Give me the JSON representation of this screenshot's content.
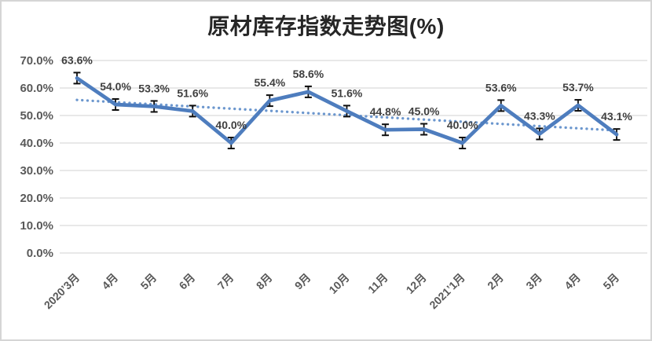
{
  "chart_data": {
    "type": "line",
    "title": "原材库存指数走势图(%)",
    "categories": [
      "2020’3月",
      "4月",
      "5月",
      "6月",
      "7月",
      "8月",
      "9月",
      "10月",
      "11月",
      "12月",
      "2021’1月",
      "2月",
      "3月",
      "4月",
      "5月"
    ],
    "values": [
      63.6,
      54.0,
      53.3,
      51.6,
      40.0,
      55.4,
      58.6,
      51.6,
      44.8,
      45.0,
      40.0,
      53.6,
      43.3,
      53.7,
      43.1
    ],
    "data_labels": [
      "63.6%",
      "54.0%",
      "53.3%",
      "51.6%",
      "40.0%",
      "55.4%",
      "58.6%",
      "51.6%",
      "44.8%",
      "45.0%",
      "40.0%",
      "53.6%",
      "43.3%",
      "53.7%",
      "43.1%"
    ],
    "xlabel": "",
    "ylabel": "",
    "ylim": [
      0,
      70
    ],
    "y_tick_step": 10,
    "y_ticks": [
      "0.0%",
      "10.0%",
      "20.0%",
      "30.0%",
      "40.0%",
      "50.0%",
      "60.0%",
      "70.0%"
    ],
    "grid": true,
    "legend_position": "none",
    "trendline": {
      "type": "linear",
      "style": "dotted"
    },
    "error_bars": {
      "plus_minus": 2.0
    }
  },
  "colors": {
    "series_line": "#4E7DBE",
    "trendline": "#6C97CE",
    "gridline": "#D9D9D9",
    "axis_label": "#595959",
    "data_label": "#3F3F3F",
    "title": "#262626",
    "error_bar": "#0D0D0D",
    "border": "#D5D5D5",
    "background": "#FFFFFF"
  }
}
